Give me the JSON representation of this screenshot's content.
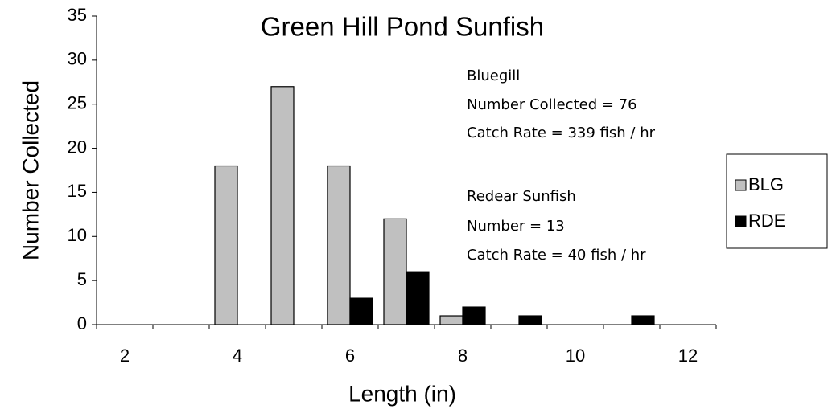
{
  "chart_data": {
    "type": "bar",
    "title": "Green Hill Pond Sunfish",
    "xlabel": "Length (in)",
    "ylabel": "Number Collected",
    "categories": [
      "2",
      null,
      "4",
      null,
      "6",
      null,
      "8",
      null,
      "10",
      null,
      "12"
    ],
    "series": [
      {
        "name": "BLG",
        "color": "#c0c0c0",
        "values": [
          0,
          0,
          18,
          27,
          18,
          12,
          1,
          0,
          0,
          0,
          0
        ]
      },
      {
        "name": "RDE",
        "color": "#000000",
        "values": [
          0,
          0,
          0,
          0,
          3,
          6,
          2,
          1,
          0,
          1,
          0
        ]
      }
    ],
    "annotations": [
      "Bluegill",
      "Number Collected = 76",
      "Catch Rate = 339 fish / hr",
      "Redear Sunfish",
      "Number = 13",
      "Catch Rate = 40 fish / hr"
    ],
    "ylim": [
      0,
      35
    ],
    "yticks": [
      0,
      5,
      10,
      15,
      20,
      25,
      30,
      35
    ],
    "grid": false,
    "legend": "right"
  }
}
